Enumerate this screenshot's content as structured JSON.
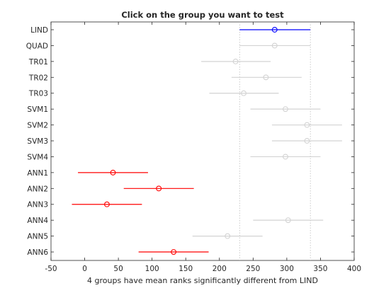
{
  "chart_data": {
    "type": "scatter",
    "title": "Click on the group you want to test",
    "xlabel": "4 groups have mean ranks significantly different from LIND",
    "ylabel": "",
    "xlim": [
      -50,
      400
    ],
    "xticks": [
      "-50",
      "0",
      "50",
      "100",
      "150",
      "200",
      "250",
      "300",
      "350",
      "400"
    ],
    "grid": false,
    "reference_lines": [
      230,
      335
    ],
    "groups": [
      "LIND",
      "QUAD",
      "TR01",
      "TR02",
      "TR03",
      "SVM1",
      "SVM2",
      "SVM3",
      "SVM4",
      "ANN1",
      "ANN2",
      "ANN3",
      "ANN4",
      "ANN5",
      "ANN6"
    ],
    "series": [
      {
        "name": "",
        "color": "#0000ff",
        "role": "selected",
        "groups": [
          "LIND"
        ],
        "mean": [
          282
        ],
        "low": [
          230
        ],
        "high": [
          335
        ]
      },
      {
        "name": "",
        "color": "#d3d3d3",
        "role": "not significant",
        "groups": [
          "QUAD",
          "TR01",
          "TR02",
          "TR03",
          "SVM1",
          "SVM2",
          "SVM3",
          "SVM4",
          "ANN4",
          "ANN5"
        ],
        "mean": [
          282,
          224,
          269,
          236,
          298,
          330,
          330,
          298,
          302,
          212
        ],
        "low": [
          230,
          173,
          218,
          185,
          246,
          278,
          278,
          246,
          250,
          160
        ],
        "high": [
          335,
          276,
          322,
          288,
          350,
          382,
          382,
          350,
          354,
          264
        ]
      },
      {
        "name": "",
        "color": "#ff0000",
        "role": "significantly different",
        "groups": [
          "ANN1",
          "ANN2",
          "ANN3",
          "ANN6"
        ],
        "mean": [
          42,
          110,
          33,
          132
        ],
        "low": [
          -10,
          58,
          -19,
          80
        ],
        "high": [
          94,
          162,
          85,
          184
        ]
      }
    ]
  }
}
